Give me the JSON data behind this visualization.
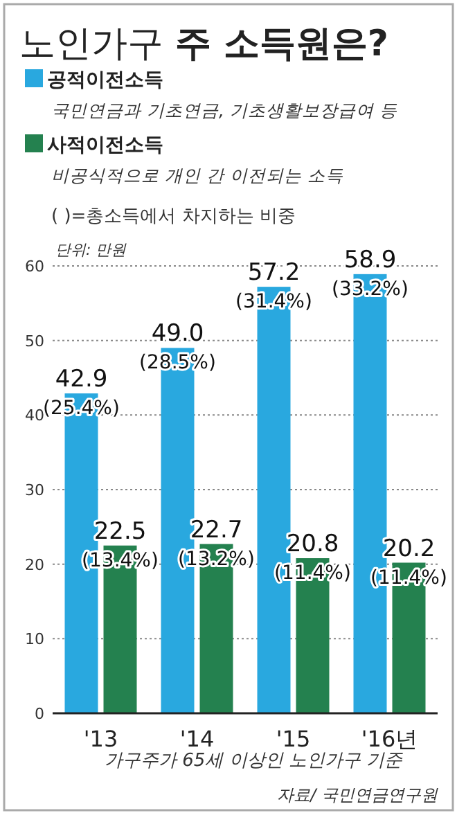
{
  "chart_data": {
    "type": "bar",
    "title": "노인가구 주 소득원은?",
    "categories": [
      "'13",
      "'14",
      "'15",
      "'16년"
    ],
    "series": [
      {
        "name": "공적이전소득",
        "color": "#29a8df",
        "values": [
          42.9,
          49.0,
          57.2,
          58.9
        ],
        "value_labels": [
          "42.9\n(25.4%)",
          "49.0\n(28.5%)",
          "57.2\n(31.4%)",
          "58.9\n(33.2%)"
        ]
      },
      {
        "name": "사적이전소득",
        "color": "#24814f",
        "values": [
          22.5,
          22.7,
          20.8,
          20.2
        ],
        "value_labels": [
          "22.5\n(13.4%)",
          "22.7\n(13.2%)",
          "20.8\n(11.4%)",
          "20.2\n(11.4%)"
        ]
      }
    ],
    "ylim": [
      0,
      60
    ],
    "yticks": [
      0,
      10,
      20,
      30,
      40,
      50,
      60
    ],
    "grid": "y",
    "legend": "top left",
    "annotations": [
      "국민연금과 기초연금, 기초생활보장급여 등",
      "비공식적으로 개인 간 이전되는 소득",
      "( )=총소득에서 차지하는 비중",
      "단위: 만원",
      "가구주가 65세 이상인 노인가구 기준",
      "자료/ 국민연금연구원"
    ]
  }
}
